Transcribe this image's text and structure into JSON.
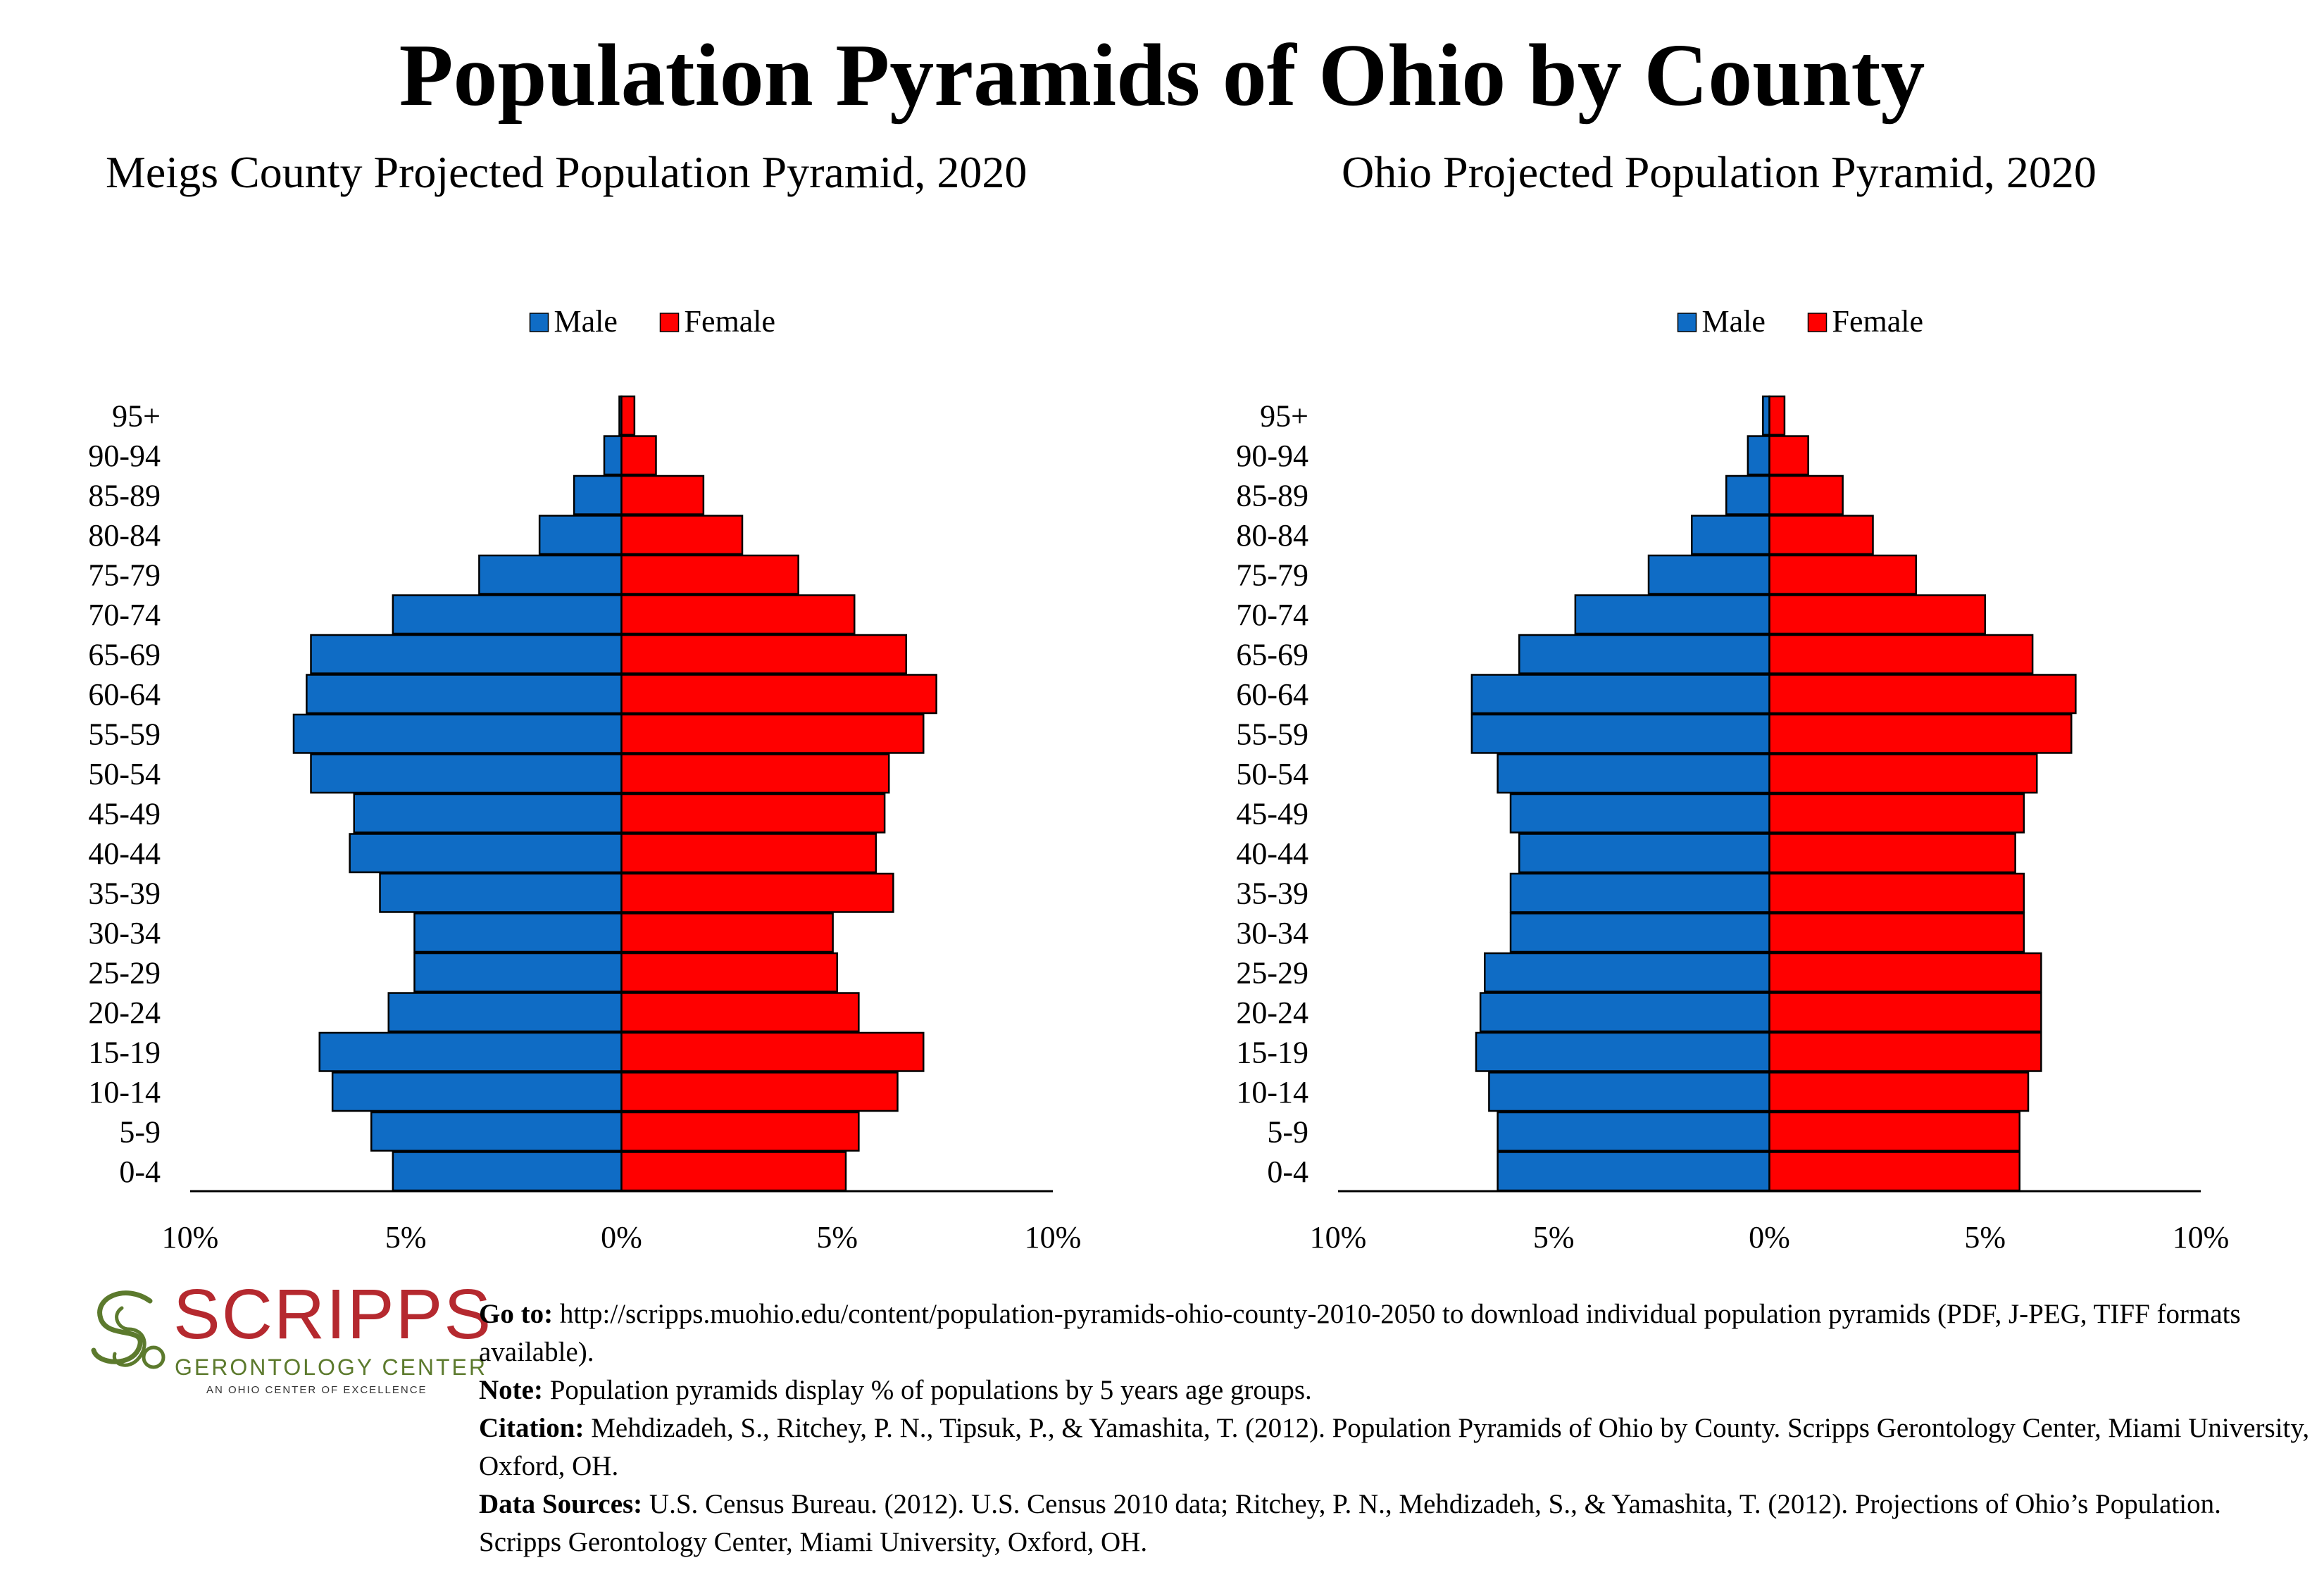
{
  "main_title": "Population Pyramids of Ohio by County",
  "colors": {
    "male": "#0f6cc5",
    "female": "#ff0000",
    "axis": "#000000"
  },
  "chart_data": [
    {
      "type": "bar",
      "orientation": "horizontal-pyramid",
      "title": "Meigs County Projected Population Pyramid, 2020",
      "categories": [
        "0-4",
        "5-9",
        "10-14",
        "15-19",
        "20-24",
        "25-29",
        "30-34",
        "35-39",
        "40-44",
        "45-49",
        "50-54",
        "55-59",
        "60-64",
        "65-69",
        "70-74",
        "75-79",
        "80-84",
        "85-89",
        "90-94",
        "95+"
      ],
      "series": [
        {
          "name": "Male",
          "values": [
            5.3,
            5.8,
            6.7,
            7.0,
            5.4,
            4.8,
            4.8,
            5.6,
            6.3,
            6.2,
            7.2,
            7.6,
            7.3,
            7.2,
            5.3,
            3.3,
            1.9,
            1.1,
            0.4,
            0.05
          ]
        },
        {
          "name": "Female",
          "values": [
            5.2,
            5.5,
            6.4,
            7.0,
            5.5,
            5.0,
            4.9,
            6.3,
            5.9,
            6.1,
            6.2,
            7.0,
            7.3,
            6.6,
            5.4,
            4.1,
            2.8,
            1.9,
            0.8,
            0.3
          ]
        }
      ],
      "xlim": [
        -10,
        10
      ],
      "x_tick_labels": [
        "10%",
        "5%",
        "0%",
        "5%",
        "10%"
      ],
      "legend": [
        "Male",
        "Female"
      ],
      "legend_position": "top-center",
      "grid": false
    },
    {
      "type": "bar",
      "orientation": "horizontal-pyramid",
      "title": "Ohio Projected Population Pyramid, 2020",
      "categories": [
        "0-4",
        "5-9",
        "10-14",
        "15-19",
        "20-24",
        "25-29",
        "30-34",
        "35-39",
        "40-44",
        "45-49",
        "50-54",
        "55-59",
        "60-64",
        "65-69",
        "70-74",
        "75-79",
        "80-84",
        "85-89",
        "90-94",
        "95+"
      ],
      "series": [
        {
          "name": "Male",
          "values": [
            6.3,
            6.3,
            6.5,
            6.8,
            6.7,
            6.6,
            6.0,
            6.0,
            5.8,
            6.0,
            6.3,
            6.9,
            6.9,
            5.8,
            4.5,
            2.8,
            1.8,
            1.0,
            0.5,
            0.15
          ]
        },
        {
          "name": "Female",
          "values": [
            5.8,
            5.8,
            6.0,
            6.3,
            6.3,
            6.3,
            5.9,
            5.9,
            5.7,
            5.9,
            6.2,
            7.0,
            7.1,
            6.1,
            5.0,
            3.4,
            2.4,
            1.7,
            0.9,
            0.35
          ]
        }
      ],
      "xlim": [
        -10,
        10
      ],
      "x_tick_labels": [
        "10%",
        "5%",
        "0%",
        "5%",
        "10%"
      ],
      "legend": [
        "Male",
        "Female"
      ],
      "legend_position": "top-center",
      "grid": false
    }
  ],
  "logo": {
    "word": "SCRIPPS",
    "line1": "GERONTOLOGY CENTER",
    "line2": "AN OHIO CENTER OF EXCELLENCE"
  },
  "footer": {
    "goto_label": "Go to:",
    "goto_text": " http://scripps.muohio.edu/content/population-pyramids-ohio-county-2010-2050 to download individual population pyramids (PDF, J-PEG, TIFF formats available).",
    "note_label": "Note:",
    "note_text": " Population pyramids display % of populations by 5 years age groups.",
    "citation_label": "Citation:",
    "citation_text": " Mehdizadeh, S., Ritchey, P. N., Tipsuk, P., & Yamashita, T. (2012). Population Pyramids of Ohio by County. Scripps Gerontology Center, Miami University, Oxford, OH.",
    "sources_label": "Data Sources:",
    "sources_text": " U.S. Census Bureau. (2012). U.S. Census 2010 data; Ritchey, P. N., Mehdizadeh, S., & Yamashita, T. (2012). Projections of Ohio’s Population. Scripps Gerontology Center, Miami University, Oxford, OH."
  }
}
